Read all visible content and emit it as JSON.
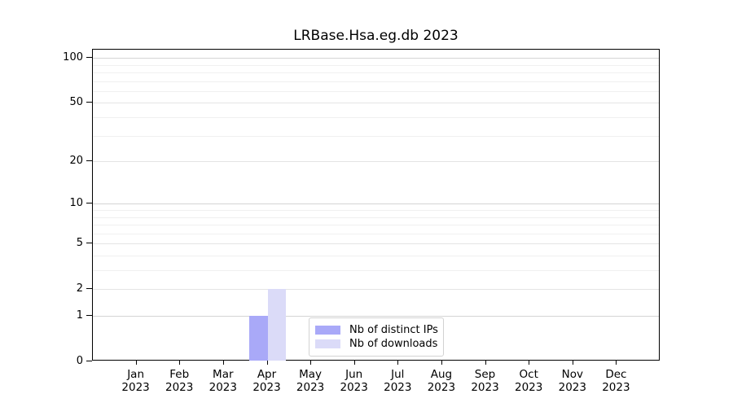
{
  "title": "LRBase.Hsa.eg.db 2023",
  "legend": {
    "items": [
      {
        "label": "Nb of distinct IPs",
        "color": "#a9a9f8"
      },
      {
        "label": "Nb of downloads",
        "color": "#dbdbf8"
      }
    ]
  },
  "chart_data": {
    "type": "bar",
    "title": "LRBase.Hsa.eg.db 2023",
    "categories": [
      "Jan 2023",
      "Feb 2023",
      "Mar 2023",
      "Apr 2023",
      "May 2023",
      "Jun 2023",
      "Jul 2023",
      "Aug 2023",
      "Sep 2023",
      "Oct 2023",
      "Nov 2023",
      "Dec 2023"
    ],
    "series": [
      {
        "name": "Nb of distinct IPs",
        "color": "#a9a9f8",
        "values": [
          0,
          0,
          0,
          1,
          0,
          0,
          0,
          0,
          0,
          0,
          0,
          0
        ]
      },
      {
        "name": "Nb of downloads",
        "color": "#dbdbf8",
        "values": [
          0,
          0,
          0,
          2,
          0,
          0,
          0,
          0,
          0,
          0,
          0,
          0
        ]
      }
    ],
    "xlabel": "",
    "ylabel": "",
    "yscale": "log1p",
    "ylim": [
      0,
      113.6
    ],
    "yticks": [
      0,
      1,
      2,
      5,
      10,
      20,
      50,
      100
    ],
    "minor_gridlines": [
      3,
      4,
      6,
      7,
      8,
      9,
      30,
      40,
      60,
      70,
      80,
      90
    ],
    "grid": "horizontal",
    "legend_position": "inside lower center"
  }
}
